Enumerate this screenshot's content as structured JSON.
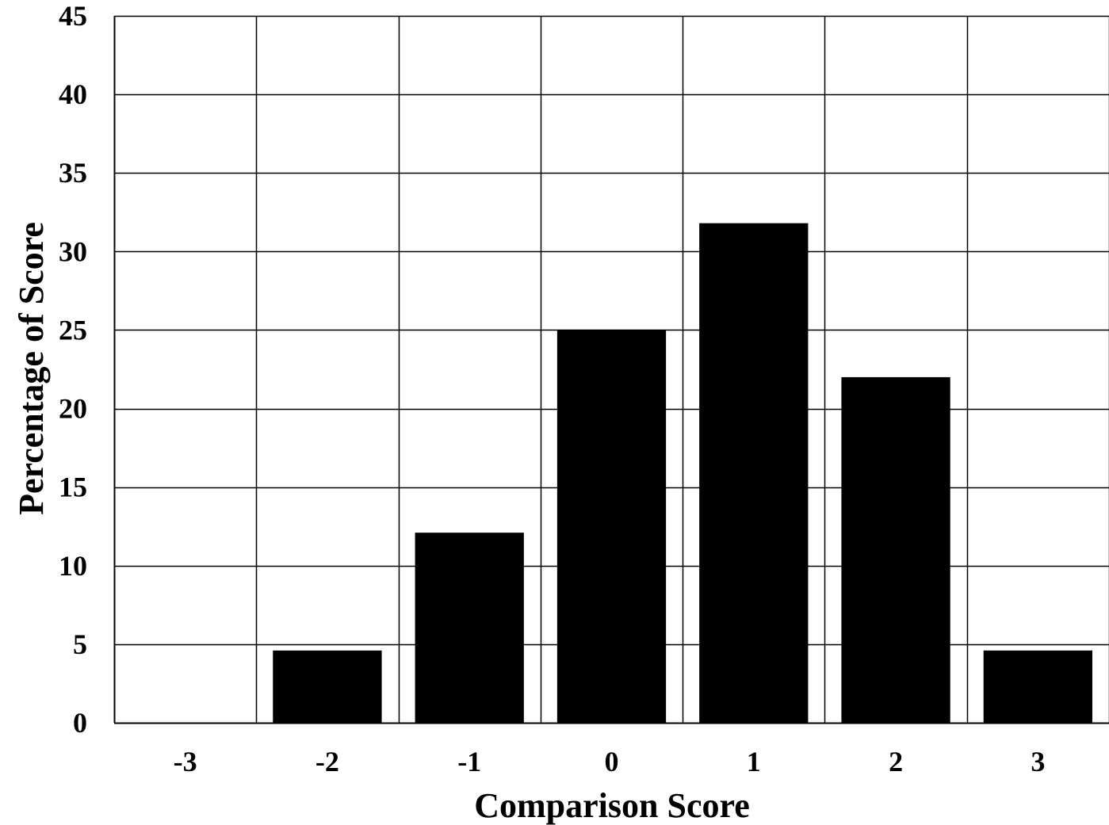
{
  "chart_data": {
    "type": "bar",
    "title": "",
    "xlabel": "Comparison Score",
    "ylabel": "Percentage of Score",
    "categories": [
      "-3",
      "-2",
      "-1",
      "0",
      "1",
      "2",
      "3"
    ],
    "values": [
      0,
      4.6,
      12.1,
      25.0,
      31.8,
      22.0,
      4.6
    ],
    "ylim": [
      0,
      45
    ],
    "yticks": [
      "0",
      "5",
      "10",
      "15",
      "20",
      "25",
      "30",
      "35",
      "40",
      "45"
    ],
    "grid": true,
    "legend": "none",
    "colors": {
      "bar": "#000000",
      "grid": "#000000",
      "background": "#ffffff"
    }
  }
}
